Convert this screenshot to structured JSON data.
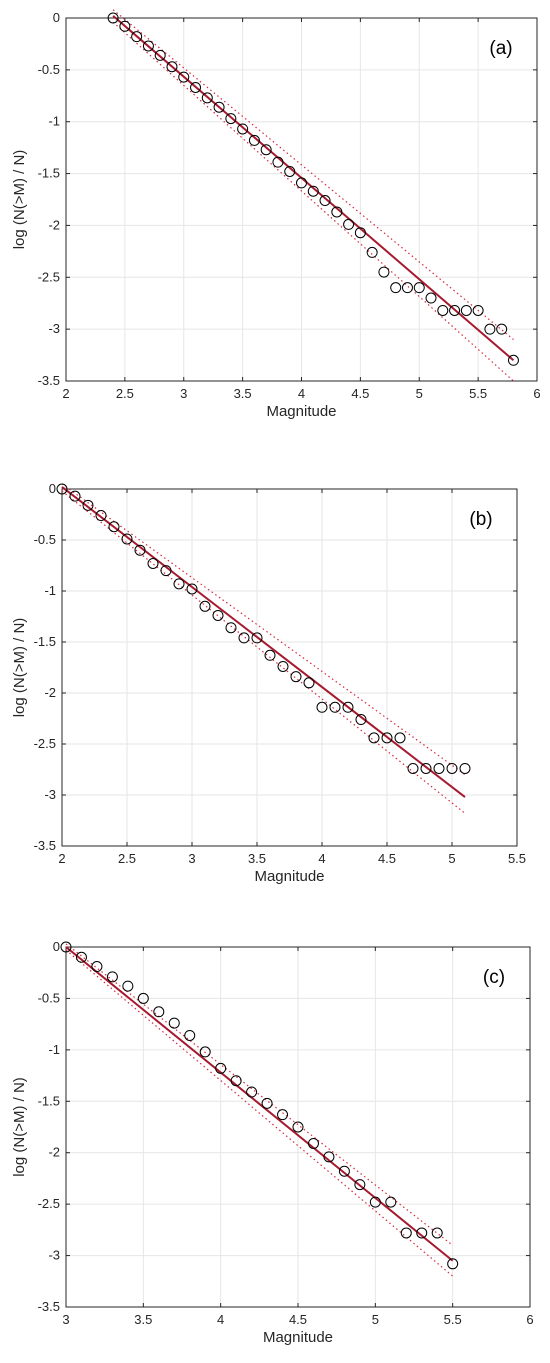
{
  "chart_data": [
    {
      "type": "scatter",
      "panel_label": "(a)",
      "xlabel": "Magnitude",
      "ylabel": "log (N(>M) / N)",
      "xlim": [
        2,
        6
      ],
      "ylim": [
        -3.5,
        0
      ],
      "xticks": [
        "2",
        "2.5",
        "3",
        "3.5",
        "4",
        "4.5",
        "5",
        "5.5",
        "6"
      ],
      "yticks": [
        "0",
        "-0.5",
        "-1",
        "-1.5",
        "-2",
        "-2.5",
        "-3",
        "-3.5"
      ],
      "grid": true,
      "series": [
        {
          "kind": "observed",
          "marker": "circle",
          "x": [
            2.4,
            2.5,
            2.6,
            2.7,
            2.8,
            2.9,
            3.0,
            3.1,
            3.2,
            3.3,
            3.4,
            3.5,
            3.6,
            3.7,
            3.8,
            3.9,
            4.0,
            4.1,
            4.2,
            4.3,
            4.4,
            4.5,
            4.6,
            4.7,
            4.8,
            4.9,
            5.0,
            5.1,
            5.2,
            5.3,
            5.4,
            5.5,
            5.6,
            5.7,
            5.8
          ],
          "y": [
            0.0,
            -0.08,
            -0.18,
            -0.27,
            -0.36,
            -0.47,
            -0.57,
            -0.67,
            -0.77,
            -0.86,
            -0.97,
            -1.07,
            -1.18,
            -1.27,
            -1.39,
            -1.48,
            -1.59,
            -1.67,
            -1.76,
            -1.87,
            -1.99,
            -2.07,
            -2.26,
            -2.45,
            -2.6,
            -2.6,
            -2.6,
            -2.7,
            -2.82,
            -2.82,
            -2.82,
            -2.82,
            -3.0,
            -3.0,
            -3.3
          ]
        },
        {
          "kind": "fit",
          "x": [
            2.4,
            5.8
          ],
          "y": [
            0.02,
            -3.3
          ]
        },
        {
          "kind": "bound",
          "x": [
            2.4,
            5.8
          ],
          "y": [
            0.08,
            -3.1
          ]
        },
        {
          "kind": "bound",
          "x": [
            2.4,
            5.8
          ],
          "y": [
            -0.04,
            -3.5
          ]
        }
      ]
    },
    {
      "type": "scatter",
      "panel_label": "(b)",
      "xlabel": "Magnitude",
      "ylabel": "log (N(>M) / N)",
      "xlim": [
        2,
        5.5
      ],
      "ylim": [
        -3.5,
        0
      ],
      "xticks": [
        "2",
        "2.5",
        "3",
        "3.5",
        "4",
        "4.5",
        "5",
        "5.5"
      ],
      "yticks": [
        "0",
        "-0.5",
        "-1",
        "-1.5",
        "-2",
        "-2.5",
        "-3",
        "-3.5"
      ],
      "grid": true,
      "series": [
        {
          "kind": "observed",
          "marker": "circle",
          "x": [
            2.0,
            2.1,
            2.2,
            2.3,
            2.4,
            2.5,
            2.6,
            2.7,
            2.8,
            2.9,
            3.0,
            3.1,
            3.2,
            3.3,
            3.4,
            3.5,
            3.6,
            3.7,
            3.8,
            3.9,
            4.0,
            4.1,
            4.2,
            4.3,
            4.4,
            4.5,
            4.6,
            4.7,
            4.8,
            4.9,
            5.0,
            5.1
          ],
          "y": [
            0.0,
            -0.07,
            -0.16,
            -0.26,
            -0.37,
            -0.49,
            -0.6,
            -0.73,
            -0.8,
            -0.93,
            -0.98,
            -1.15,
            -1.24,
            -1.36,
            -1.46,
            -1.46,
            -1.63,
            -1.74,
            -1.84,
            -1.9,
            -2.14,
            -2.14,
            -2.14,
            -2.26,
            -2.44,
            -2.44,
            -2.44,
            -2.74,
            -2.74,
            -2.74,
            -2.74,
            -2.74
          ]
        },
        {
          "kind": "fit",
          "x": [
            2.0,
            5.1
          ],
          "y": [
            0.02,
            -3.02
          ]
        },
        {
          "kind": "bound",
          "x": [
            2.0,
            5.1
          ],
          "y": [
            0.05,
            -2.8
          ]
        },
        {
          "kind": "bound",
          "x": [
            2.0,
            5.1
          ],
          "y": [
            -0.02,
            -3.18
          ]
        }
      ]
    },
    {
      "type": "scatter",
      "panel_label": "(c)",
      "xlabel": "Magnitude",
      "ylabel": "log (N(>M) / N)",
      "xlim": [
        3,
        6
      ],
      "ylim": [
        -3.5,
        0
      ],
      "xticks": [
        "3",
        "3.5",
        "4",
        "4.5",
        "5",
        "5.5",
        "6"
      ],
      "yticks": [
        "0",
        "-0.5",
        "-1",
        "-1.5",
        "-2",
        "-2.5",
        "-3",
        "-3.5"
      ],
      "grid": true,
      "series": [
        {
          "kind": "observed",
          "marker": "circle",
          "x": [
            3.0,
            3.1,
            3.2,
            3.3,
            3.4,
            3.5,
            3.6,
            3.7,
            3.8,
            3.9,
            4.0,
            4.1,
            4.2,
            4.3,
            4.4,
            4.5,
            4.6,
            4.7,
            4.8,
            4.9,
            5.0,
            5.1,
            5.2,
            5.3,
            5.4,
            5.5
          ],
          "y": [
            0.0,
            -0.1,
            -0.19,
            -0.29,
            -0.38,
            -0.5,
            -0.63,
            -0.74,
            -0.86,
            -1.02,
            -1.18,
            -1.3,
            -1.41,
            -1.52,
            -1.63,
            -1.75,
            -1.91,
            -2.04,
            -2.18,
            -2.31,
            -2.48,
            -2.48,
            -2.78,
            -2.78,
            -2.78,
            -3.08
          ]
        },
        {
          "kind": "fit",
          "x": [
            3.0,
            5.5
          ],
          "y": [
            0.0,
            -3.05
          ]
        },
        {
          "kind": "bound",
          "x": [
            3.0,
            5.5
          ],
          "y": [
            0.03,
            -2.9
          ]
        },
        {
          "kind": "bound",
          "x": [
            3.0,
            5.5
          ],
          "y": [
            -0.03,
            -3.2
          ]
        }
      ]
    }
  ]
}
